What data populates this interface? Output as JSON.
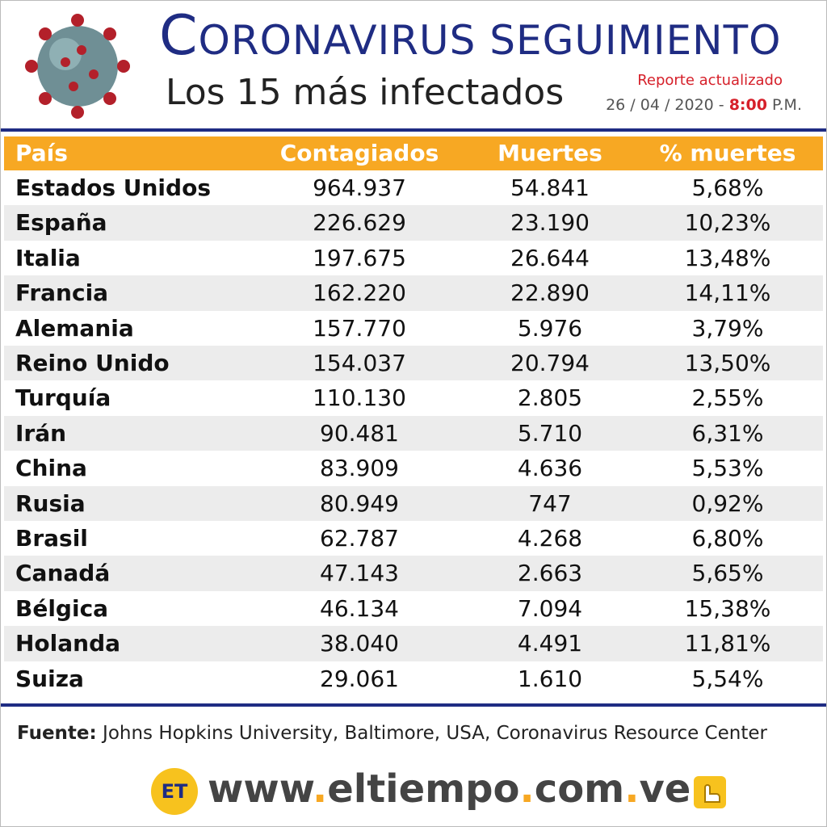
{
  "header": {
    "title": "CORONAVIRUS SEGUIMIENTO",
    "subtitle": "Los 15 más infectados",
    "report_label": "Reporte actualizado",
    "date": "26 / 04 / 2020 -",
    "time": "8:00",
    "meridiem": "P.M."
  },
  "table": {
    "header": [
      "País",
      "Contagiados",
      "Muertes",
      "% muertes"
    ],
    "rows": [
      [
        "Estados Unidos",
        "964.937",
        "54.841",
        "5,68%"
      ],
      [
        "España",
        "226.629",
        "23.190",
        "10,23%"
      ],
      [
        "Italia",
        "197.675",
        "26.644",
        "13,48%"
      ],
      [
        "Francia",
        "162.220",
        "22.890",
        "14,11%"
      ],
      [
        "Alemania",
        "157.770",
        "5.976",
        "3,79%"
      ],
      [
        "Reino Unido",
        "154.037",
        "20.794",
        "13,50%"
      ],
      [
        "Turquía",
        "110.130",
        "2.805",
        "2,55%"
      ],
      [
        "Irán",
        "90.481",
        "5.710",
        "6,31%"
      ],
      [
        "China",
        "83.909",
        "4.636",
        "5,53%"
      ],
      [
        "Rusia",
        "80.949",
        "747",
        "0,92%"
      ],
      [
        "Brasil",
        "62.787",
        "4.268",
        "6,80%"
      ],
      [
        "Canadá",
        "47.143",
        "2.663",
        "5,65%"
      ],
      [
        "Bélgica",
        "46.134",
        "7.094",
        "15,38%"
      ],
      [
        "Holanda",
        "38.040",
        "4.491",
        "11,81%"
      ],
      [
        "Suiza",
        "29.061",
        "1.610",
        "5,54%"
      ]
    ]
  },
  "footer": {
    "source_label": "Fuente:",
    "source": "Johns Hopkins University, Baltimore, USA, Coronavirus Resource Center",
    "logo": "ET",
    "website": [
      "www",
      ".",
      "eltiempo",
      ".",
      "com",
      ".",
      "ve"
    ]
  }
}
